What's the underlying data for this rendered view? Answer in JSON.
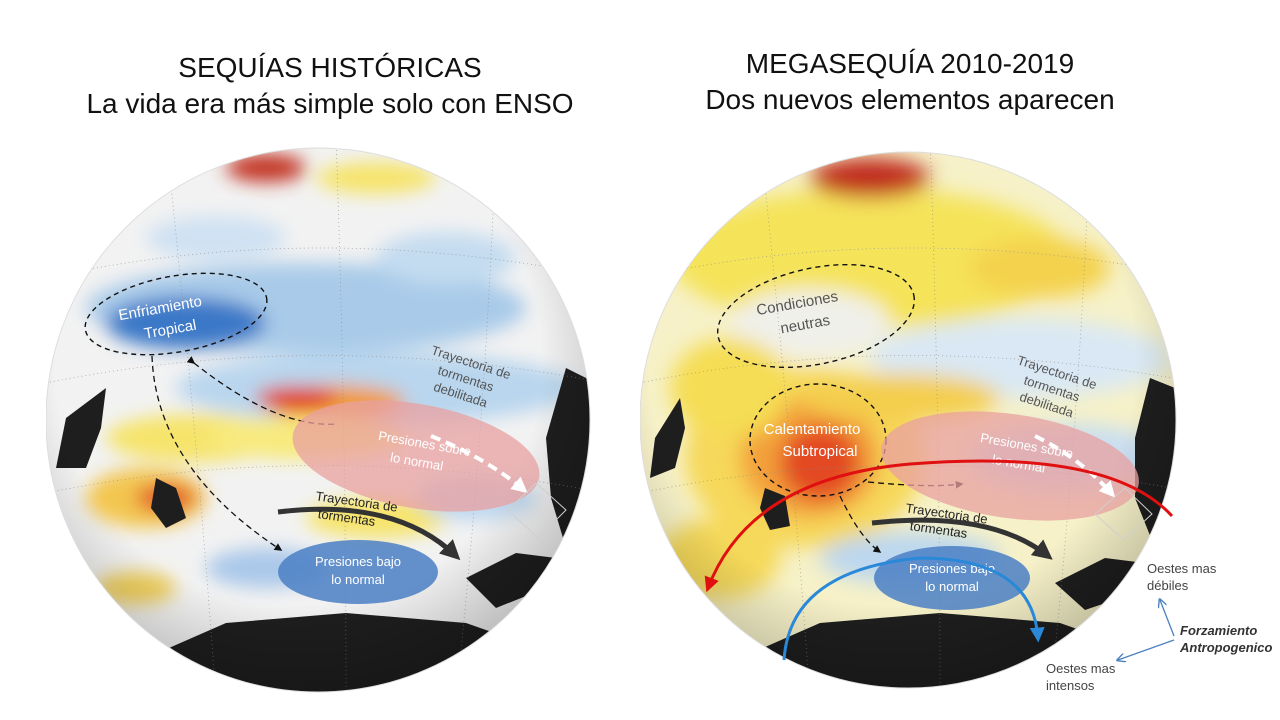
{
  "left_panel": {
    "title_line1": "SEQUÍAS HISTÓRICAS",
    "title_line2": "La vida era más simple solo con ENSO",
    "labels": {
      "cooling_line1": "Enfriamiento",
      "cooling_line2": "Tropical",
      "weak_track_line1": "Trayectoria de",
      "weak_track_line2": "tormentas",
      "weak_track_line3": "debilitada",
      "high_pressure_line1": "Presiones sobre",
      "high_pressure_line2": "lo normal",
      "storm_track_line1": "Trayectoria de",
      "storm_track_line2": "tormentas",
      "low_pressure_line1": "Presiones bajo",
      "low_pressure_line2": "lo normal"
    }
  },
  "right_panel": {
    "title_line1": "MEGASEQUÍA 2010-2019",
    "title_line2": "Dos nuevos elementos aparecen",
    "labels": {
      "neutral_line1": "Condiciones",
      "neutral_line2": "neutras",
      "warming_line1": "Calentamiento",
      "warming_line2": "Subtropical",
      "weak_track_line1": "Trayectoria de",
      "weak_track_line2": "tormentas",
      "weak_track_line3": "debilitada",
      "high_pressure_line1": "Presiones sobre",
      "high_pressure_line2": "lo normal",
      "storm_track_line1": "Trayectoria de",
      "storm_track_line2": "tormentas",
      "low_pressure_line1": "Presiones bajo",
      "low_pressure_line2": "lo normal"
    },
    "side_labels": {
      "weaker_westerlies_line1": "Oestes mas",
      "weaker_westerlies_line2": "débiles",
      "forcing_line1": "Forzamiento",
      "forcing_line2": "Antropogenico",
      "stronger_westerlies_line1": "Oestes mas",
      "stronger_westerlies_line2": "intensos"
    }
  },
  "colors": {
    "land": "#1e1e1e",
    "cool_anomaly": "#3a78c8",
    "warm_anomaly": "#e03a1e",
    "high_pressure": "#e8a0a0",
    "low_pressure": "#4a7fc4",
    "weaker_westerlies_arrow": "#e01010",
    "stronger_westerlies_arrow": "#2a88d8"
  }
}
